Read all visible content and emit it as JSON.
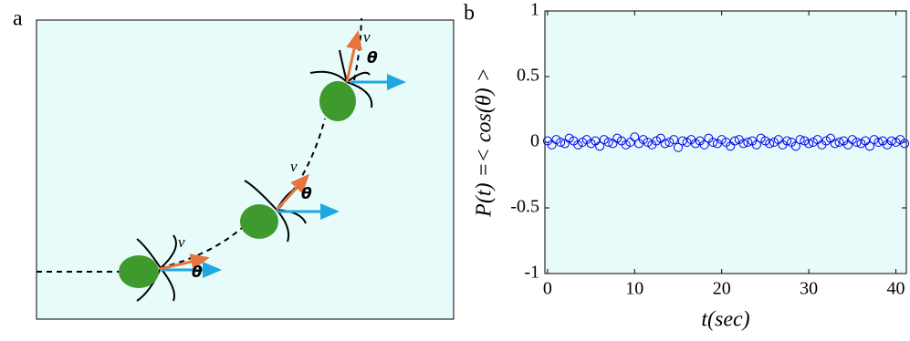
{
  "panel_a": {
    "label": "a",
    "velocity_labels": [
      "v",
      "v",
      "v"
    ],
    "angle_labels": [
      "θ",
      "θ",
      "θ"
    ]
  },
  "chart_data": {
    "type": "scatter",
    "panel_label": "b",
    "xlabel": "t(sec)",
    "ylabel": "P(t) =< cos(θ) >",
    "x": [
      0,
      0.5,
      1,
      1.5,
      2,
      2.5,
      3,
      3.5,
      4,
      4.5,
      5,
      5.5,
      6,
      6.5,
      7,
      7.5,
      8,
      8.5,
      9,
      9.5,
      10,
      10.5,
      11,
      11.5,
      12,
      12.5,
      13,
      13.5,
      14,
      14.5,
      15,
      15.5,
      16,
      16.5,
      17,
      17.5,
      18,
      18.5,
      19,
      19.5,
      20,
      20.5,
      21,
      21.5,
      22,
      22.5,
      23,
      23.5,
      24,
      24.5,
      25,
      25.5,
      26,
      26.5,
      27,
      27.5,
      28,
      28.5,
      29,
      29.5,
      30,
      30.5,
      31,
      31.5,
      32,
      32.5,
      33,
      33.5,
      34,
      34.5,
      35,
      35.5,
      36,
      36.5,
      37,
      37.5,
      38,
      38.5,
      39,
      39.5,
      40,
      40.5,
      41
    ],
    "values": [
      0.01,
      -0.02,
      0.02,
      0.0,
      -0.01,
      0.03,
      0.01,
      -0.02,
      0.0,
      0.02,
      -0.01,
      0.01,
      -0.03,
      0.02,
      0.0,
      -0.01,
      0.03,
      0.01,
      -0.02,
      0.0,
      0.04,
      -0.01,
      0.02,
      0.0,
      -0.02,
      0.01,
      0.03,
      -0.01,
      0.0,
      0.02,
      -0.04,
      0.01,
      0.0,
      0.02,
      -0.01,
      0.01,
      -0.02,
      0.03,
      0.0,
      -0.01,
      0.02,
      0.0,
      -0.03,
      0.01,
      0.02,
      -0.01,
      0.0,
      0.01,
      -0.02,
      0.03,
      0.01,
      -0.01,
      0.0,
      0.02,
      -0.02,
      0.01,
      0.0,
      -0.03,
      0.02,
      0.01,
      -0.01,
      0.0,
      0.02,
      -0.02,
      0.01,
      0.03,
      -0.01,
      0.0,
      0.01,
      -0.02,
      0.02,
      0.0,
      -0.01,
      0.01,
      -0.03,
      0.02,
      0.0,
      0.01,
      -0.02,
      0.01,
      0.0,
      0.02,
      -0.01
    ],
    "color": "#0000ee",
    "xlim": [
      -0.3,
      41.2
    ],
    "ylim": [
      -1,
      1
    ],
    "xticks": [
      0,
      10,
      20,
      30,
      40
    ],
    "yticks": [
      -1,
      -0.5,
      0,
      0.5,
      1
    ]
  }
}
